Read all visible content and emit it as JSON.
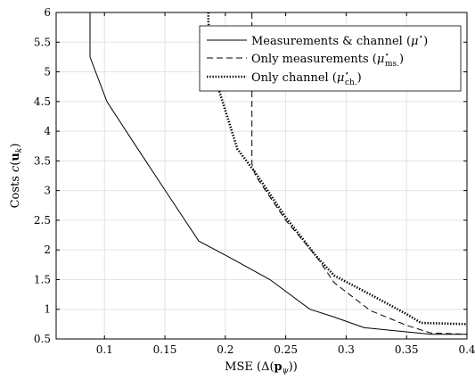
{
  "chart_data": {
    "type": "line",
    "xlabel": "MSE (Δ(p_ψ))",
    "ylabel": "Costs c(u_k)",
    "xlim": [
      0.06,
      0.4
    ],
    "ylim": [
      0.5,
      6
    ],
    "xticks": [
      0.1,
      0.15,
      0.2,
      0.25,
      0.3,
      0.35,
      0.4
    ],
    "xtick_labels": [
      "0.1",
      "0.15",
      "0.2",
      "0.25",
      "0.3",
      "0.35",
      "0.4"
    ],
    "yticks": [
      0.5,
      1,
      1.5,
      2,
      2.5,
      3,
      3.5,
      4,
      4.5,
      5,
      5.5,
      6
    ],
    "ytick_labels": [
      "0.5",
      "1",
      "1.5",
      "2",
      "2.5",
      "3",
      "3.5",
      "4",
      "4.5",
      "5",
      "5.5",
      "6"
    ],
    "grid": true,
    "legend_position": "top-right",
    "series": [
      {
        "name": "Measurements & channel (μ*)",
        "style": "solid",
        "x": [
          0.088,
          0.088,
          0.102,
          0.126,
          0.152,
          0.178,
          0.203,
          0.237,
          0.27,
          0.29,
          0.315,
          0.32,
          0.37,
          0.4
        ],
        "y": [
          6.0,
          5.25,
          4.5,
          3.75,
          2.95,
          2.15,
          1.88,
          1.5,
          1.0,
          0.87,
          0.69,
          0.68,
          0.58,
          0.58
        ]
      },
      {
        "name": "Only measurements (μ*_ms.)",
        "style": "dashed",
        "x": [
          0.222,
          0.222,
          0.225,
          0.25,
          0.275,
          0.29,
          0.32,
          0.35,
          0.37,
          0.4
        ],
        "y": [
          6.0,
          3.45,
          3.25,
          2.5,
          1.9,
          1.45,
          0.98,
          0.73,
          0.6,
          0.58
        ]
      },
      {
        "name": "Only channel (μ*_ch.)",
        "style": "dotted",
        "x": [
          0.186,
          0.186,
          0.19,
          0.21,
          0.225,
          0.25,
          0.275,
          0.29,
          0.32,
          0.35,
          0.362,
          0.4
        ],
        "y": [
          6.0,
          5.85,
          5.0,
          3.7,
          3.3,
          2.55,
          1.9,
          1.57,
          1.25,
          0.92,
          0.77,
          0.75
        ]
      }
    ]
  }
}
